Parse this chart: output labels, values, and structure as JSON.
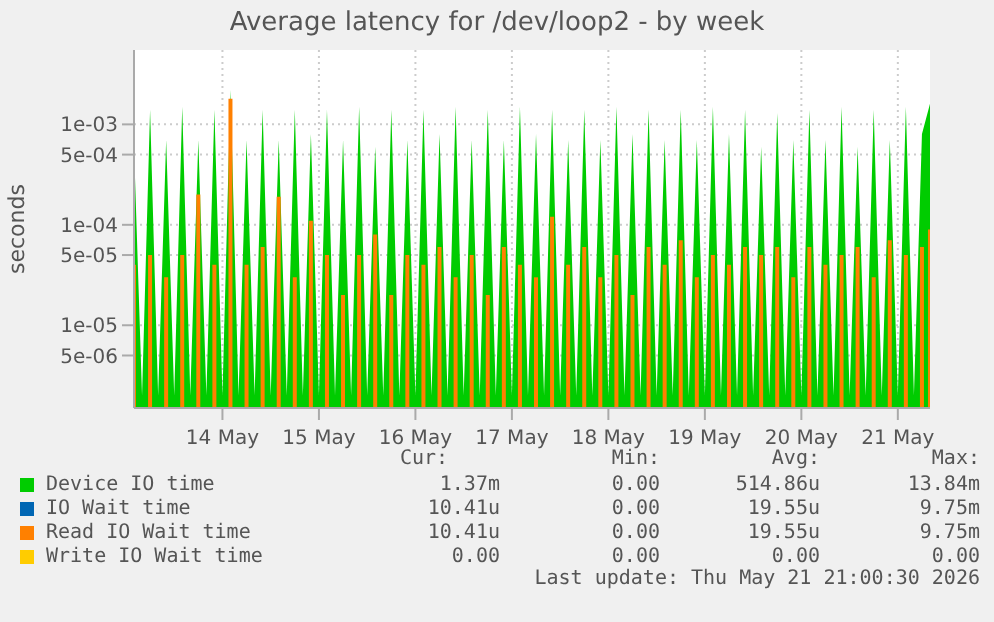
{
  "chart_data": {
    "type": "area",
    "title": "Average latency for /dev/loop2 - by week",
    "ylabel": "seconds",
    "log": "y",
    "grid": true,
    "legend": "bottom",
    "xlim": [
      "2026-05-13T14:00",
      "2026-05-21T20:00"
    ],
    "xticks": [
      {
        "value": "2026-05-14T12:00",
        "label": "14 May"
      },
      {
        "value": "2026-05-15T12:00",
        "label": "15 May"
      },
      {
        "value": "2026-05-16T12:00",
        "label": "16 May"
      },
      {
        "value": "2026-05-17T12:00",
        "label": "17 May"
      },
      {
        "value": "2026-05-18T12:00",
        "label": "18 May"
      },
      {
        "value": "2026-05-19T12:00",
        "label": "19 May"
      },
      {
        "value": "2026-05-20T12:00",
        "label": "20 May"
      },
      {
        "value": "2026-05-21T12:00",
        "label": "21 May"
      }
    ],
    "ylim": [
      1.5e-06,
      0.0055
    ],
    "yticks": [
      {
        "value": 5e-06,
        "label": "5e-06"
      },
      {
        "value": 1e-05,
        "label": "1e-05"
      },
      {
        "value": 5e-05,
        "label": "5e-05"
      },
      {
        "value": 0.0001,
        "label": "1e-04"
      },
      {
        "value": 0.0005,
        "label": "5e-04"
      },
      {
        "value": 0.001,
        "label": "1e-03"
      }
    ],
    "x": [
      "2026-05-13T14:00",
      "2026-05-13T16:00",
      "2026-05-13T18:00",
      "2026-05-13T20:00",
      "2026-05-13T22:00",
      "2026-05-14T00:00",
      "2026-05-14T02:00",
      "2026-05-14T04:00",
      "2026-05-14T06:00",
      "2026-05-14T08:00",
      "2026-05-14T10:00",
      "2026-05-14T12:00",
      "2026-05-14T14:00",
      "2026-05-14T16:00",
      "2026-05-14T18:00",
      "2026-05-14T20:00",
      "2026-05-14T22:00",
      "2026-05-15T00:00",
      "2026-05-15T02:00",
      "2026-05-15T04:00",
      "2026-05-15T06:00",
      "2026-05-15T08:00",
      "2026-05-15T10:00",
      "2026-05-15T12:00",
      "2026-05-15T14:00",
      "2026-05-15T16:00",
      "2026-05-15T18:00",
      "2026-05-15T20:00",
      "2026-05-15T22:00",
      "2026-05-16T00:00",
      "2026-05-16T02:00",
      "2026-05-16T04:00",
      "2026-05-16T06:00",
      "2026-05-16T08:00",
      "2026-05-16T10:00",
      "2026-05-16T12:00",
      "2026-05-16T14:00",
      "2026-05-16T16:00",
      "2026-05-16T18:00",
      "2026-05-16T20:00",
      "2026-05-16T22:00",
      "2026-05-17T00:00",
      "2026-05-17T02:00",
      "2026-05-17T04:00",
      "2026-05-17T06:00",
      "2026-05-17T08:00",
      "2026-05-17T10:00",
      "2026-05-17T12:00",
      "2026-05-17T14:00",
      "2026-05-17T16:00",
      "2026-05-17T18:00",
      "2026-05-17T20:00",
      "2026-05-17T22:00",
      "2026-05-18T00:00",
      "2026-05-18T02:00",
      "2026-05-18T04:00",
      "2026-05-18T06:00",
      "2026-05-18T08:00",
      "2026-05-18T10:00",
      "2026-05-18T12:00",
      "2026-05-18T14:00",
      "2026-05-18T16:00",
      "2026-05-18T18:00",
      "2026-05-18T20:00",
      "2026-05-18T22:00",
      "2026-05-19T00:00",
      "2026-05-19T02:00",
      "2026-05-19T04:00",
      "2026-05-19T06:00",
      "2026-05-19T08:00",
      "2026-05-19T10:00",
      "2026-05-19T12:00",
      "2026-05-19T14:00",
      "2026-05-19T16:00",
      "2026-05-19T18:00",
      "2026-05-19T20:00",
      "2026-05-19T22:00",
      "2026-05-20T00:00",
      "2026-05-20T02:00",
      "2026-05-20T04:00",
      "2026-05-20T06:00",
      "2026-05-20T08:00",
      "2026-05-20T10:00",
      "2026-05-20T12:00",
      "2026-05-20T14:00",
      "2026-05-20T16:00",
      "2026-05-20T18:00",
      "2026-05-20T20:00",
      "2026-05-20T22:00",
      "2026-05-21T00:00",
      "2026-05-21T02:00",
      "2026-05-21T04:00",
      "2026-05-21T06:00",
      "2026-05-21T08:00",
      "2026-05-21T10:00",
      "2026-05-21T12:00",
      "2026-05-21T14:00",
      "2026-05-21T16:00",
      "2026-05-21T18:00",
      "2026-05-21T20:00"
    ],
    "series": [
      {
        "name": "Device IO time",
        "color": "#00cc00",
        "values": [
          0.0006,
          2e-06,
          0.0014,
          2e-06,
          0.0007,
          2e-06,
          0.0015,
          2e-06,
          0.0007,
          2e-06,
          0.0014,
          2e-06,
          0.0022,
          2e-06,
          0.0007,
          2e-06,
          0.0014,
          2e-06,
          0.0007,
          2e-06,
          0.0014,
          2e-06,
          0.0008,
          2e-06,
          0.0014,
          2e-06,
          0.0007,
          2e-06,
          0.0015,
          2e-06,
          0.0006,
          2e-06,
          0.0014,
          2e-06,
          0.0007,
          2e-06,
          0.0014,
          2e-06,
          0.0008,
          2e-06,
          0.0015,
          2e-06,
          0.0007,
          2e-06,
          0.0014,
          2e-06,
          0.0007,
          2e-06,
          0.0015,
          2e-06,
          0.0008,
          2e-06,
          0.0014,
          2e-06,
          0.0007,
          2e-06,
          0.0014,
          2e-06,
          0.0007,
          2e-06,
          0.0015,
          2e-06,
          0.0008,
          2e-06,
          0.0014,
          2e-06,
          0.0007,
          2e-06,
          0.0014,
          2e-06,
          0.0007,
          2e-06,
          0.0015,
          2e-06,
          0.0008,
          2e-06,
          0.0014,
          2e-06,
          0.0006,
          2e-06,
          0.0013,
          2e-06,
          0.0007,
          2e-06,
          0.0014,
          2e-06,
          0.0007,
          2e-06,
          0.0015,
          2e-06,
          0.0006,
          2e-06,
          0.0014,
          2e-06,
          0.0007,
          2e-06,
          0.0015,
          2e-06,
          0.0008,
          0.0016
        ]
      },
      {
        "name": "IO Wait time",
        "color": "#0066b3",
        "values": [
          null,
          null,
          null,
          null,
          null,
          null,
          null,
          null,
          null,
          null,
          null,
          null,
          null,
          null,
          null,
          null,
          null,
          null,
          null,
          null,
          null,
          null,
          null,
          null,
          null,
          null,
          null,
          null,
          null,
          null,
          null,
          null,
          null,
          null,
          null,
          null,
          null,
          null,
          null,
          null,
          null,
          null,
          null,
          null,
          null,
          null,
          null,
          null,
          null,
          null,
          null,
          null,
          null,
          null,
          null,
          null,
          null,
          null,
          null,
          null,
          null,
          null,
          null,
          null,
          null,
          null,
          null,
          null,
          null,
          null,
          null,
          null,
          null,
          null,
          null,
          null,
          null,
          null,
          null,
          null,
          null,
          null,
          null,
          null,
          null,
          null,
          null,
          null,
          null,
          null,
          null,
          null,
          null,
          null,
          null,
          null,
          null,
          null,
          null,
          null
        ]
      },
      {
        "name": "Read IO Wait time",
        "type": "bar",
        "color": "#ff8000",
        "values": [
          4e-05,
          null,
          5e-05,
          null,
          3e-05,
          null,
          5e-05,
          null,
          0.0002,
          null,
          4e-05,
          null,
          0.0018,
          null,
          4e-05,
          null,
          6e-05,
          null,
          0.00019,
          null,
          3e-05,
          null,
          0.00011,
          null,
          5e-05,
          null,
          2e-05,
          null,
          5e-05,
          null,
          8e-05,
          null,
          2e-05,
          null,
          5e-05,
          null,
          4e-05,
          null,
          6e-05,
          null,
          3e-05,
          null,
          5e-05,
          null,
          2e-05,
          null,
          6e-05,
          null,
          4e-05,
          null,
          3e-05,
          null,
          0.00012,
          null,
          4e-05,
          null,
          6e-05,
          null,
          3e-05,
          null,
          5e-05,
          null,
          2e-05,
          null,
          6e-05,
          null,
          4e-05,
          null,
          7e-05,
          null,
          3e-05,
          null,
          5e-05,
          null,
          4e-05,
          null,
          6e-05,
          null,
          5e-05,
          null,
          6e-05,
          null,
          3e-05,
          null,
          6e-05,
          null,
          4e-05,
          null,
          5e-05,
          null,
          6e-05,
          null,
          3e-05,
          null,
          7e-05,
          null,
          5e-05,
          null,
          6e-05,
          9e-05
        ]
      },
      {
        "name": "Write IO Wait time",
        "color": "#ffcc00",
        "values": [
          null,
          null,
          null,
          null,
          null,
          null,
          null,
          null,
          null,
          null,
          null,
          null,
          null,
          null,
          null,
          null,
          null,
          null,
          null,
          null,
          null,
          null,
          null,
          null,
          null,
          null,
          null,
          null,
          null,
          null,
          null,
          null,
          null,
          null,
          null,
          null,
          null,
          null,
          null,
          null,
          null,
          null,
          null,
          null,
          null,
          null,
          null,
          null,
          null,
          null,
          null,
          null,
          null,
          null,
          null,
          null,
          null,
          null,
          null,
          null,
          null,
          null,
          null,
          null,
          null,
          null,
          null,
          null,
          null,
          null,
          null,
          null,
          null,
          null,
          null,
          null,
          null,
          null,
          null,
          null,
          null,
          null,
          null,
          null,
          null,
          null,
          null,
          null,
          null,
          null,
          null,
          null,
          null,
          null,
          null,
          null,
          null,
          null,
          null,
          null
        ]
      }
    ],
    "annotations": [
      "Cur:",
      "Min:",
      "Avg:",
      "Max:",
      "1.37m",
      "0.00",
      "514.86u",
      "13.84m",
      "10.41u",
      "0.00",
      "19.55u",
      "9.75m",
      "10.41u",
      "0.00",
      "19.55u",
      "9.75m",
      "0.00",
      "0.00",
      "0.00",
      "0.00",
      "Last update: Thu May 21 21:00:30 2026"
    ]
  }
}
